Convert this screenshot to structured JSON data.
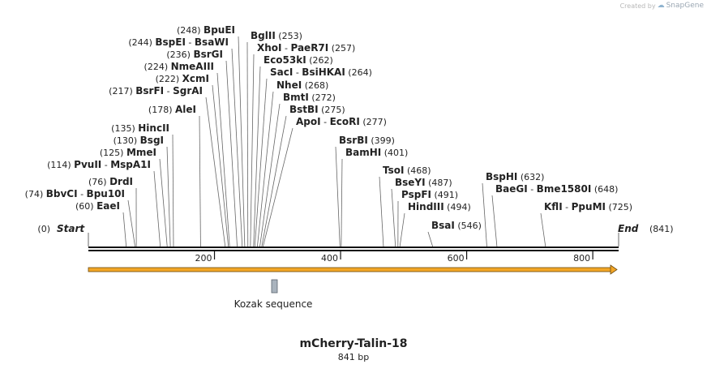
{
  "credit": {
    "created_by": "Created by",
    "brand": "SnapGene"
  },
  "map": {
    "name": "mCherry-Talin-18",
    "length_label": "841 bp",
    "length": 841,
    "start_label": "Start",
    "end_label": "End",
    "start_pos": "(0)",
    "end_pos": "(841)",
    "ticks": [
      {
        "value": 200,
        "label": "200"
      },
      {
        "value": 400,
        "label": "400"
      },
      {
        "value": 600,
        "label": "600"
      },
      {
        "value": 800,
        "label": "800"
      }
    ],
    "features": [
      {
        "name": "Kozak sequence",
        "start": 292,
        "end": 301
      }
    ],
    "sites": [
      {
        "enz": "EaeI",
        "pos": "(60)",
        "bp": 60,
        "side": "L",
        "row": 0
      },
      {
        "enz": "BbvCI",
        "enz2": "Bpu10I",
        "pos": "(74)",
        "bp": 74,
        "side": "L",
        "row": 1
      },
      {
        "enz": "DrdI",
        "pos": "(76)",
        "bp": 76,
        "side": "L",
        "row": 2
      },
      {
        "enz": "PvuII",
        "enz2": "MspA1I",
        "pos": "(114)",
        "bp": 114,
        "side": "L",
        "row": 3
      },
      {
        "enz": "MmeI",
        "pos": "(125)",
        "bp": 125,
        "side": "L",
        "row": 4
      },
      {
        "enz": "BsgI",
        "pos": "(130)",
        "bp": 130,
        "side": "L",
        "row": 5
      },
      {
        "enz": "HincII",
        "pos": "(135)",
        "bp": 135,
        "side": "L",
        "row": 6
      },
      {
        "enz": "AleI",
        "pos": "(178)",
        "bp": 178,
        "side": "L",
        "row": 7
      },
      {
        "enz": "BsrFI",
        "enz2": "SgrAI",
        "pos": "(217)",
        "bp": 217,
        "side": "L",
        "row": 8
      },
      {
        "enz": "XcmI",
        "pos": "(222)",
        "bp": 222,
        "side": "L",
        "row": 9
      },
      {
        "enz": "NmeAIII",
        "pos": "(224)",
        "bp": 224,
        "side": "L",
        "row": 10
      },
      {
        "enz": "BsrGI",
        "pos": "(236)",
        "bp": 236,
        "side": "L",
        "row": 11
      },
      {
        "enz": "BspEI",
        "enz2": "BsaWI",
        "pos": "(244)",
        "bp": 244,
        "side": "L",
        "row": 12
      },
      {
        "enz": "BpuEI",
        "pos": "(248)",
        "bp": 248,
        "side": "L",
        "row": 13
      },
      {
        "enz": "BglII",
        "pos": "(253)",
        "bp": 253,
        "side": "R",
        "row": 14
      },
      {
        "enz": "XhoI",
        "enz2": "PaeR7I",
        "pos": "(257)",
        "bp": 257,
        "side": "R",
        "row": 15
      },
      {
        "enz": "Eco53kI",
        "pos": "(262)",
        "bp": 262,
        "side": "R",
        "row": 16
      },
      {
        "enz": "SacI",
        "enz2": "BsiHKAI",
        "pos": "(264)",
        "bp": 264,
        "side": "R",
        "row": 17
      },
      {
        "enz": "NheI",
        "pos": "(268)",
        "bp": 268,
        "side": "R",
        "row": 18
      },
      {
        "enz": "BmtI",
        "pos": "(272)",
        "bp": 272,
        "side": "R",
        "row": 19
      },
      {
        "enz": "BstBI",
        "pos": "(275)",
        "bp": 275,
        "side": "R",
        "row": 20
      },
      {
        "enz": "ApoI",
        "enz2": "EcoRI",
        "pos": "(277)",
        "bp": 277,
        "side": "R",
        "row": 21
      },
      {
        "enz": "BsrBI",
        "pos": "(399)",
        "bp": 399,
        "side": "R",
        "row": 22
      },
      {
        "enz": "BamHI",
        "pos": "(401)",
        "bp": 401,
        "side": "R",
        "row": 23
      },
      {
        "enz": "TsoI",
        "pos": "(468)",
        "bp": 468,
        "side": "R",
        "row": 24
      },
      {
        "enz": "BseYI",
        "pos": "(487)",
        "bp": 487,
        "side": "R",
        "row": 25
      },
      {
        "enz": "PspFI",
        "pos": "(491)",
        "bp": 491,
        "side": "R",
        "row": 26
      },
      {
        "enz": "HindIII",
        "pos": "(494)",
        "bp": 494,
        "side": "R",
        "row": 27
      },
      {
        "enz": "BsaI",
        "pos": "(546)",
        "bp": 546,
        "side": "R",
        "row": 28
      },
      {
        "enz": "BspHI",
        "pos": "(632)",
        "bp": 632,
        "side": "R",
        "row": 29
      },
      {
        "enz": "BaeGI",
        "enz2": "Bme1580I",
        "pos": "(648)",
        "bp": 648,
        "side": "R",
        "row": 30
      },
      {
        "enz": "KflI",
        "enz2": "PpuMI",
        "pos": "(725)",
        "bp": 725,
        "side": "R",
        "row": 31
      }
    ]
  }
}
